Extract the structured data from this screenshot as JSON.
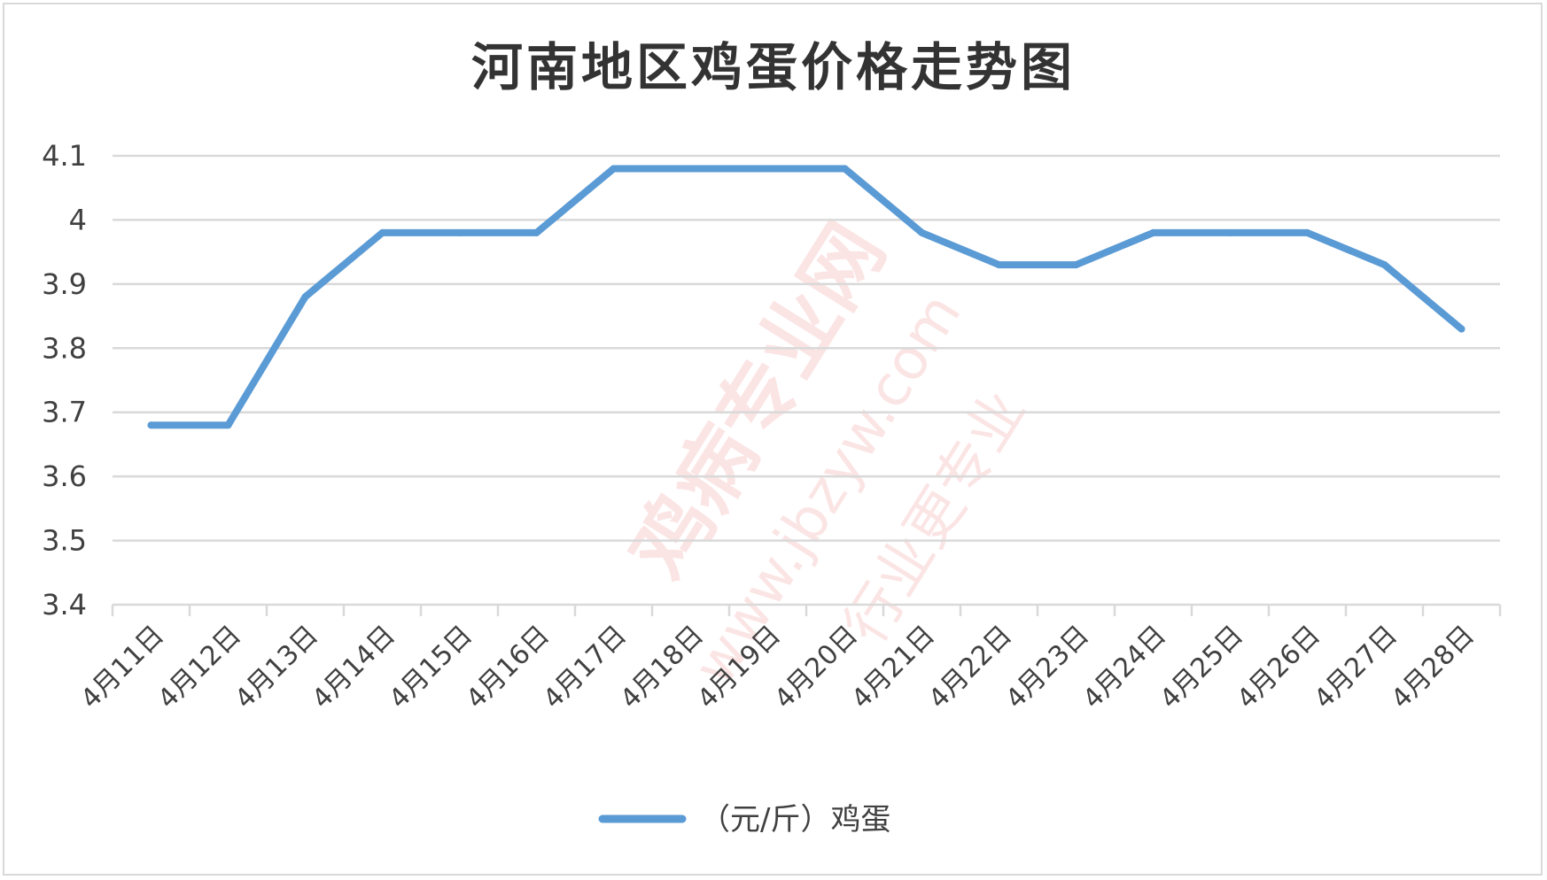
{
  "chart_data": {
    "type": "line",
    "title": "河南地区鸡蛋价格走势图",
    "categories": [
      "4月11日",
      "4月12日",
      "4月13日",
      "4月14日",
      "4月15日",
      "4月16日",
      "4月17日",
      "4月18日",
      "4月19日",
      "4月20日",
      "4月21日",
      "4月22日",
      "4月23日",
      "4月24日",
      "4月25日",
      "4月26日",
      "4月27日",
      "4月28日"
    ],
    "series": [
      {
        "name": "（元/斤）鸡蛋",
        "values": [
          3.68,
          3.68,
          3.88,
          3.98,
          3.98,
          3.98,
          4.08,
          4.08,
          4.08,
          4.08,
          3.98,
          3.93,
          3.93,
          3.98,
          3.98,
          3.98,
          3.93,
          3.83
        ],
        "color": "#5b9bd5"
      }
    ],
    "ylim": [
      3.4,
      4.1
    ],
    "yticks": [
      "3.4",
      "3.5",
      "3.6",
      "3.7",
      "3.8",
      "3.9",
      "4",
      "4.1"
    ],
    "grid": true,
    "legend_position": "bottom"
  },
  "watermark": {
    "brand": "鸡病专业网",
    "url": "www.jbzyw.com",
    "slogan": "行业更专业"
  }
}
